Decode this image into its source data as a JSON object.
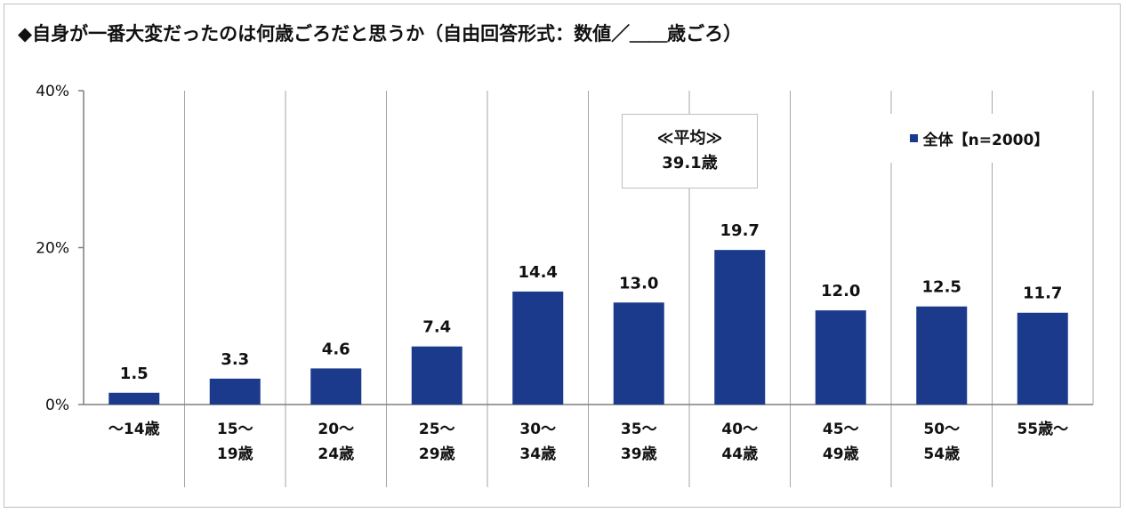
{
  "title": "◆自身が一番大変だったのは何歳ごろだと思うか（自由回答形式：数値／＿＿歳ごろ）",
  "average": {
    "label": "≪平均≫",
    "value": "39.1歳"
  },
  "chart_data": {
    "type": "bar",
    "categories": [
      [
        "～14歳"
      ],
      [
        "15～",
        "19歳"
      ],
      [
        "20～",
        "24歳"
      ],
      [
        "25～",
        "29歳"
      ],
      [
        "30～",
        "34歳"
      ],
      [
        "35～",
        "39歳"
      ],
      [
        "40～",
        "44歳"
      ],
      [
        "45～",
        "49歳"
      ],
      [
        "50～",
        "54歳"
      ],
      [
        "55歳～"
      ]
    ],
    "series": [
      {
        "name": "全体【n=2000】",
        "values": [
          1.5,
          3.3,
          4.6,
          7.4,
          14.4,
          13.0,
          19.7,
          12.0,
          12.5,
          11.7
        ]
      }
    ],
    "value_labels": [
      "1.5",
      "3.3",
      "4.6",
      "7.4",
      "14.4",
      "13.0",
      "19.7",
      "12.0",
      "12.5",
      "11.7"
    ],
    "y_ticks": [
      0,
      20,
      40
    ],
    "y_tick_labels": [
      "0%",
      "20%",
      "40%"
    ],
    "ylim": [
      0,
      40
    ],
    "grid": "vertical separators between categories",
    "legend_position": "top-right",
    "colors": {
      "bar": "#1b3a8c",
      "separator": "#a6a6a6",
      "axis": "#7f7f7f"
    }
  }
}
